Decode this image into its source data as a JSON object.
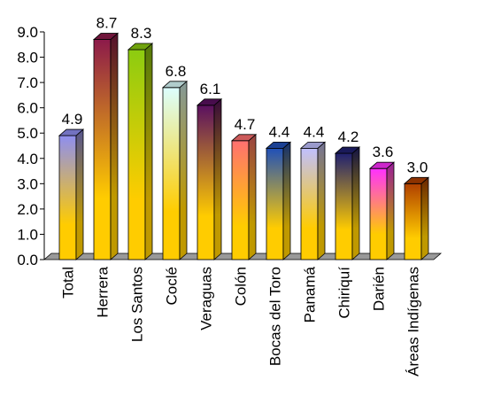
{
  "chart_data": {
    "type": "bar",
    "title": "",
    "xlabel": "",
    "ylabel": "",
    "ylim": [
      0,
      9
    ],
    "yticks": [
      "0.0",
      "1.0",
      "2.0",
      "3.0",
      "4.0",
      "5.0",
      "6.0",
      "7.0",
      "8.0",
      "9.0"
    ],
    "grid": false,
    "legend": "none",
    "categories": [
      "Total",
      "Herrera",
      "Los Santos",
      "Coclé",
      "Veraguas",
      "Colón",
      "Bocas del Toro",
      "Panamá",
      "Chiriquí",
      "Darién",
      "Áreas Indígenas"
    ],
    "values": [
      4.9,
      8.7,
      8.3,
      6.8,
      6.1,
      4.7,
      4.4,
      4.4,
      4.2,
      3.6,
      3.0
    ],
    "value_labels": [
      "4.9",
      "8.7",
      "8.3",
      "6.8",
      "6.1",
      "4.7",
      "4.4",
      "4.4",
      "4.2",
      "3.6",
      "3.0"
    ],
    "bar_top_colors": [
      "#8e8ef0",
      "#8c1a4a",
      "#8ccc10",
      "#dcffff",
      "#5a1060",
      "#ff7070",
      "#2050b8",
      "#c0c0ff",
      "#202070",
      "#ff30ff",
      "#b04000"
    ],
    "bar_bottom_color": "#ffcc00",
    "floor_color": "#999999"
  }
}
